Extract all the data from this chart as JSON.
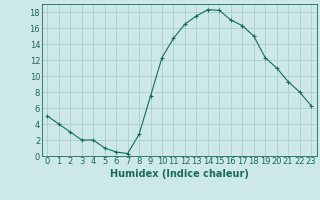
{
  "x": [
    0,
    1,
    2,
    3,
    4,
    5,
    6,
    7,
    8,
    9,
    10,
    11,
    12,
    13,
    14,
    15,
    16,
    17,
    18,
    19,
    20,
    21,
    22,
    23
  ],
  "y": [
    5,
    4,
    3,
    2,
    2,
    1,
    0.5,
    0.3,
    2.7,
    7.5,
    12.3,
    14.7,
    16.5,
    17.5,
    18.3,
    18.2,
    17.0,
    16.3,
    15.0,
    12.3,
    11.0,
    9.3,
    8.0,
    6.3
  ],
  "line_color": "#1a6b5a",
  "marker": "P",
  "marker_size": 2.5,
  "bg_color": "#cce8e8",
  "grid_color": "#aacfcf",
  "xlabel": "Humidex (Indice chaleur)",
  "xlabel_fontsize": 7,
  "tick_fontsize": 6,
  "xlim": [
    -0.5,
    23.5
  ],
  "ylim": [
    0,
    19
  ],
  "yticks": [
    0,
    2,
    4,
    6,
    8,
    10,
    12,
    14,
    16,
    18
  ],
  "xticks": [
    0,
    1,
    2,
    3,
    4,
    5,
    6,
    7,
    8,
    9,
    10,
    11,
    12,
    13,
    14,
    15,
    16,
    17,
    18,
    19,
    20,
    21,
    22,
    23
  ]
}
